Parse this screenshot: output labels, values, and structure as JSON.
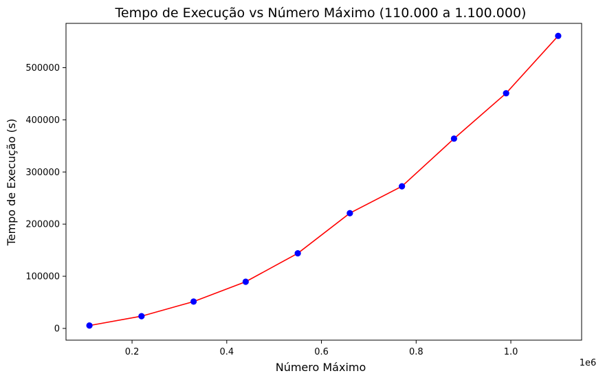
{
  "chart_data": {
    "type": "line",
    "title": "Tempo de Execução vs Número Máximo (110.000 a 1.100.000)",
    "xlabel": "Número Máximo",
    "ylabel": "Tempo de Execução (s)",
    "x_offset_label": "1e6",
    "xlim": [
      60500,
      1149500
    ],
    "ylim": [
      -22500,
      585000
    ],
    "x_ticks": [
      200000,
      400000,
      600000,
      800000,
      1000000
    ],
    "x_tick_labels": [
      "0.2",
      "0.4",
      "0.6",
      "0.8",
      "1.0"
    ],
    "y_ticks": [
      0,
      100000,
      200000,
      300000,
      400000,
      500000
    ],
    "y_tick_labels": [
      "0",
      "100000",
      "200000",
      "300000",
      "400000",
      "500000"
    ],
    "grid": false,
    "line_color": "#ff0000",
    "marker_color": "#0000ff",
    "series": [
      {
        "x": [
          110000,
          220000,
          330000,
          440000,
          550000,
          660000,
          770000,
          880000,
          990000,
          1100000
        ],
        "y": [
          5500,
          23500,
          51500,
          89500,
          144000,
          221000,
          272500,
          364000,
          451000,
          561000
        ]
      }
    ]
  }
}
